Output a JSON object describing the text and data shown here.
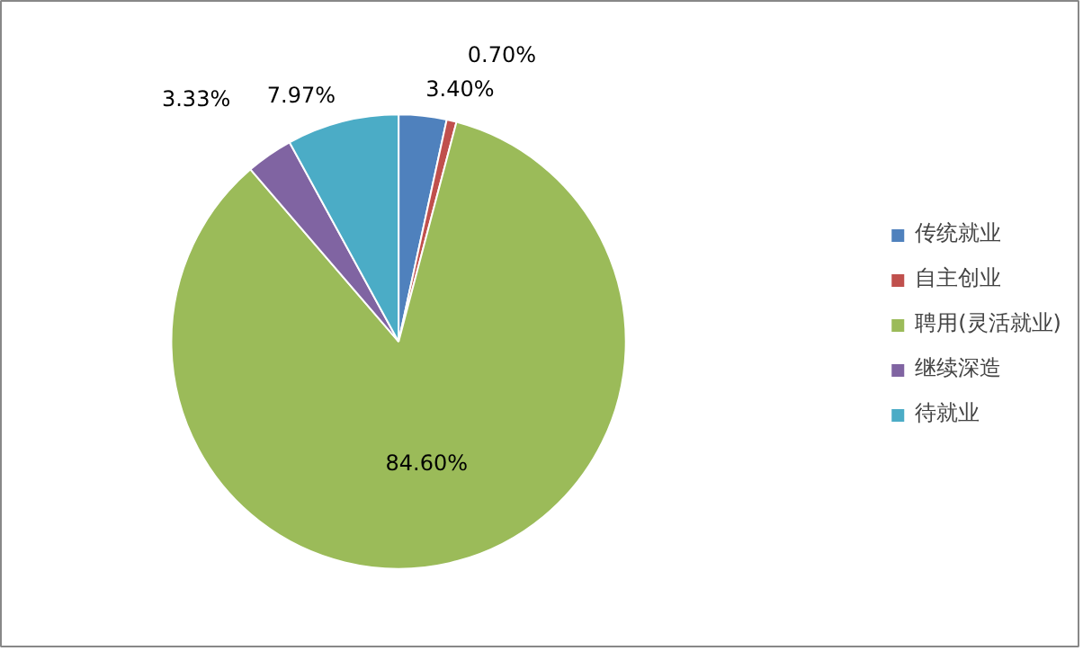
{
  "chart_data": {
    "type": "pie",
    "categories": [
      "传统就业",
      "自主创业",
      "聘用(灵活就业)",
      "继续深造",
      "待就业"
    ],
    "values": [
      3.4,
      0.7,
      84.6,
      3.33,
      7.97
    ],
    "colors": [
      "#4f81bd",
      "#c0504d",
      "#9bbb59",
      "#8064a2",
      "#4bacc6"
    ],
    "value_labels": [
      "3.40%",
      "0.70%",
      "84.60%",
      "3.33%",
      "7.97%"
    ],
    "legend": "right"
  }
}
